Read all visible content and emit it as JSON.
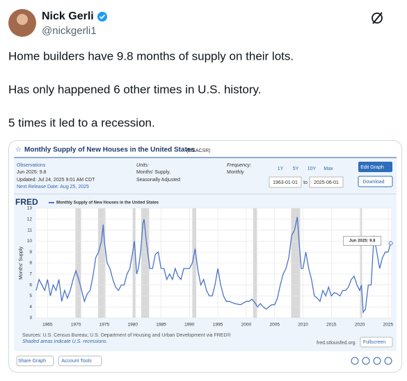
{
  "tweet": {
    "author": {
      "name": "Nick Gerli",
      "handle": "@nickgerli1"
    },
    "paragraphs": [
      "Home builders have 9.8 months of supply on their lots.",
      "Has only happened 6 other times in U.S. history.",
      "5 times it led to a recession."
    ]
  },
  "fred": {
    "title": "Monthly Supply of New Houses in the United States",
    "series_id": "(MSACSR)",
    "observations": {
      "label": "Observations",
      "latest": "Jun 2025: 9.8",
      "updated": "Updated: Jul 24, 2025 9:01 AM CDT",
      "next_release": "Next Release Date: Aug 25, 2025"
    },
    "units": {
      "label": "Units:",
      "lines": [
        "Months' Supply,",
        "Seasonally Adjusted"
      ]
    },
    "frequency": {
      "label": "Frequency:",
      "value": "Monthly"
    },
    "ranges": [
      "1Y",
      "5Y",
      "10Y",
      "Max"
    ],
    "date_from": "1963-01-01",
    "date_sep": "to",
    "date_to": "2025-06-01",
    "edit": "Edit Graph",
    "download": "Download",
    "logo": "FRED",
    "sources": "Sources: U.S. Census Bureau; U.S. Department of Housing and Urban Development via FRED®",
    "shaded": "Shaded areas indicate U.S. recessions.",
    "site": "fred.stlouisfed.org",
    "fullscreen": "Fullscreen",
    "share": "Share Graph",
    "tools": "Account Tools"
  },
  "chart_data": {
    "type": "line",
    "ylabel": "Months' Supply",
    "annotation": "Jun 2025: 9.8",
    "grid": true,
    "xlim": [
      1963,
      2025.5
    ],
    "xticks": [
      1965,
      1970,
      1975,
      1980,
      1985,
      1990,
      1995,
      2000,
      2005,
      2010,
      2015,
      2020,
      2025
    ],
    "ylim": [
      3,
      13
    ],
    "yticks": [
      3,
      4,
      5,
      6,
      7,
      8,
      9,
      10,
      11,
      12,
      13
    ],
    "recessions": [
      [
        1969.9,
        1970.9
      ],
      [
        1973.9,
        1975.2
      ],
      [
        1980,
        1980.5
      ],
      [
        1981.5,
        1982.9
      ],
      [
        1990.5,
        1991.2
      ],
      [
        2001.2,
        2001.9
      ],
      [
        2007.9,
        2009.5
      ],
      [
        2020.1,
        2020.4
      ]
    ],
    "x": [
      1963,
      1963.5,
      1964,
      1964.5,
      1965,
      1965.5,
      1966,
      1966.5,
      1967,
      1967.5,
      1968,
      1968.5,
      1969,
      1969.5,
      1970,
      1970.5,
      1971,
      1971.5,
      1972,
      1972.5,
      1973,
      1973.5,
      1974,
      1974.5,
      1974.8,
      1975,
      1975.5,
      1976,
      1976.5,
      1977,
      1977.5,
      1978,
      1978.5,
      1979,
      1979.5,
      1980,
      1980.3,
      1980.7,
      1981,
      1981.4,
      1981.8,
      1982,
      1982.4,
      1982.9,
      1983,
      1983.5,
      1984,
      1984.5,
      1985,
      1985.5,
      1986,
      1986.5,
      1987,
      1987.5,
      1988,
      1988.5,
      1989,
      1989.5,
      1990,
      1990.5,
      1991,
      1991.5,
      1992,
      1992.5,
      1993,
      1993.5,
      1994,
      1994.5,
      1995,
      1995.5,
      1996,
      1996.5,
      1997,
      1998,
      1999,
      2000,
      2000.5,
      2001,
      2001.5,
      2002,
      2002.5,
      2003,
      2003.5,
      2004,
      2004.5,
      2005,
      2005.5,
      2006,
      2006.5,
      2007,
      2007.5,
      2008,
      2008.5,
      2009,
      2009.3,
      2009.7,
      2010,
      2010.5,
      2011,
      2011.5,
      2012,
      2012.5,
      2013,
      2013.5,
      2014,
      2014.5,
      2015,
      2015.5,
      2016,
      2016.5,
      2017,
      2017.5,
      2018,
      2018.5,
      2019,
      2019.5,
      2020,
      2020.3,
      2020.6,
      2021,
      2021.5,
      2022,
      2022.5,
      2023,
      2023.5,
      2024,
      2024.5,
      2025,
      2025.45
    ],
    "series": [
      {
        "name": "Monthly Supply of New Houses in the United States",
        "color": "#4a73c7",
        "values": [
          5.5,
          6.5,
          6,
          5.5,
          6.5,
          5,
          6,
          5.5,
          6.5,
          4.5,
          5.5,
          4.8,
          5.5,
          6.5,
          7.3,
          6.5,
          5.5,
          4.5,
          5.2,
          5.5,
          6.8,
          8.5,
          9,
          10,
          11.5,
          10,
          8,
          7.5,
          6.5,
          5.8,
          5.5,
          6,
          6,
          7,
          7.5,
          9,
          10,
          7,
          7.5,
          9,
          11.6,
          12,
          10,
          8,
          7.5,
          7.5,
          8.8,
          9,
          7.5,
          7.5,
          6.5,
          7,
          6.5,
          7.5,
          6.8,
          6.5,
          7.5,
          7.5,
          7.5,
          8,
          9.3,
          7.3,
          6,
          6.5,
          5.5,
          5,
          5,
          6,
          7.5,
          6,
          5,
          4.5,
          4.5,
          4.3,
          4.2,
          4.5,
          4.5,
          4.7,
          4.4,
          4,
          4.3,
          4,
          3.8,
          4,
          4.2,
          4.2,
          4.8,
          6,
          7,
          7.5,
          8.5,
          10.5,
          11,
          12.2,
          10,
          7.5,
          7.5,
          9,
          7.5,
          6.5,
          5,
          4.8,
          4.5,
          5.5,
          5,
          5.8,
          5,
          5.3,
          5.2,
          5,
          5.5,
          5.5,
          5.8,
          6.5,
          6.8,
          6,
          5.5,
          6,
          3.5,
          3.8,
          6,
          6,
          10.5,
          9,
          7.5,
          8.5,
          9,
          9,
          9.8
        ]
      }
    ]
  }
}
